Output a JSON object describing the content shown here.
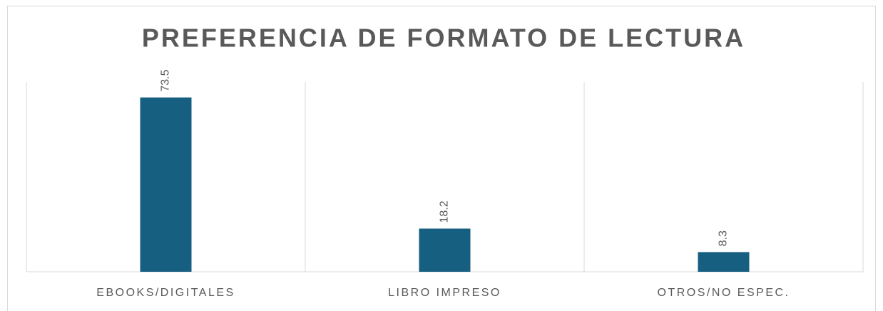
{
  "chart_data": {
    "type": "bar",
    "title": "PREFERENCIA DE FORMATO DE LECTURA",
    "categories": [
      "EBOOKS/DIGITALES",
      "LIBRO IMPRESO",
      "OTROS/NO ESPEC."
    ],
    "values": [
      73.5,
      18.2,
      8.3
    ],
    "color": "#165f80",
    "ylim": [
      0,
      80
    ],
    "grid": false
  }
}
